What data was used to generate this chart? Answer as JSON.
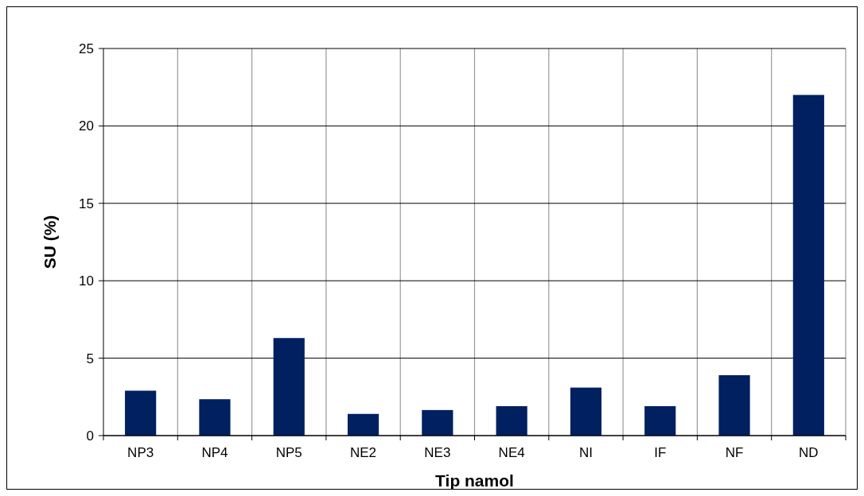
{
  "chart_data": {
    "type": "bar",
    "xlabel": "Tip namol",
    "ylabel": "SU (%)",
    "categories": [
      "NP3",
      "NP4",
      "NP5",
      "NE2",
      "NE3",
      "NE4",
      "NI",
      "IF",
      "NF",
      "ND"
    ],
    "values": [
      2.9,
      2.35,
      6.3,
      1.4,
      1.65,
      1.9,
      3.1,
      1.9,
      3.9,
      22.0
    ],
    "color": "#002060",
    "ylim": [
      0,
      25
    ],
    "yticks": [
      0,
      5,
      10,
      15,
      20,
      25
    ],
    "grid": true
  }
}
